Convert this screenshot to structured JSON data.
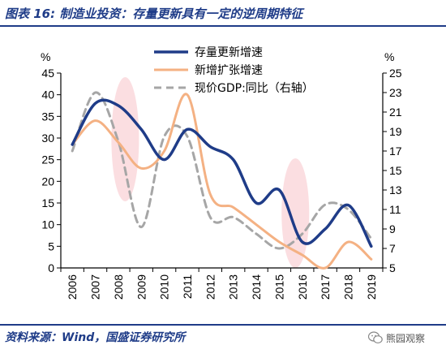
{
  "header": {
    "title": "图表 16:  制造业投资：存量更新具有一定的逆周期特征"
  },
  "footer": {
    "source": "资料来源：Wind，国盛证券研究所",
    "watermark": "熊园观察"
  },
  "colors": {
    "accent": "#1f3c88",
    "highlight": "#f9d3d7"
  },
  "icons": {
    "watermark": "wechat-icon"
  },
  "chart_data": {
    "type": "line",
    "categories": [
      "2006",
      "2007",
      "2008",
      "2009",
      "2010",
      "2011",
      "2012",
      "2013",
      "2014",
      "2015",
      "2016",
      "2017",
      "2018",
      "2019"
    ],
    "y_left": {
      "label": "%",
      "ylim": [
        0,
        45
      ],
      "ticks": [
        0,
        5,
        10,
        15,
        20,
        25,
        30,
        35,
        40,
        45
      ]
    },
    "y_right": {
      "label": "%",
      "ylim": [
        5,
        25
      ],
      "ticks": [
        5,
        7,
        9,
        11,
        13,
        15,
        17,
        19,
        21,
        23,
        25
      ]
    },
    "grid": false,
    "legend_position": "top-right",
    "highlights": [
      {
        "from": "2007.7",
        "to": "2008.9",
        "note": "shaded ellipse"
      },
      {
        "from": "2015.1",
        "to": "2016.3",
        "note": "shaded ellipse"
      }
    ],
    "series": [
      {
        "name": "存量更新增速",
        "axis": "left",
        "color": "#1f3c88",
        "style": "solid",
        "width": 3.5,
        "values": [
          28.5,
          38,
          37.5,
          32,
          25,
          32,
          28,
          25,
          15,
          18,
          6,
          9,
          14.5,
          5
        ]
      },
      {
        "name": "新增扩张增速",
        "axis": "left",
        "color": "#f4b183",
        "style": "solid",
        "width": 3,
        "values": [
          28.5,
          34,
          29,
          23,
          27,
          40,
          17,
          14,
          10,
          6,
          3,
          0,
          6,
          2
        ]
      },
      {
        "name": "现价GDP:同比（右轴）",
        "axis": "right",
        "color": "#a6a6a6",
        "style": "dashed",
        "width": 3,
        "values": [
          17,
          23,
          18,
          9.2,
          18.5,
          18.5,
          10.2,
          10.2,
          8.5,
          7,
          8.5,
          11.5,
          11,
          8
        ]
      }
    ]
  }
}
